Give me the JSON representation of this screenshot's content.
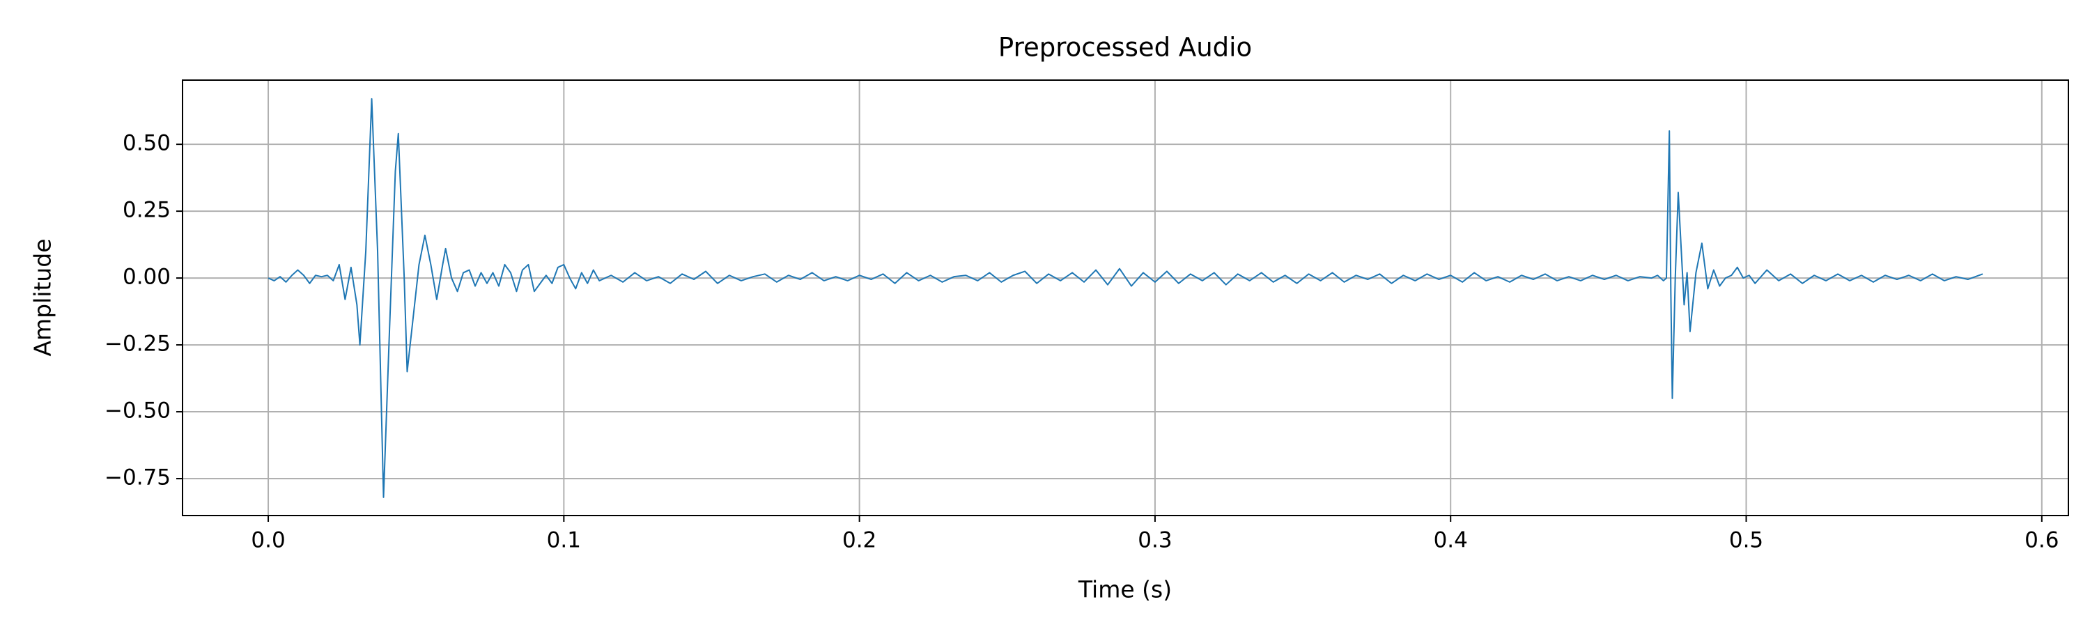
{
  "chart_data": {
    "type": "line",
    "title": "Preprocessed Audio",
    "x_label": "Time (s)",
    "y_label": "Amplitude",
    "xlim": [
      -0.029,
      0.609
    ],
    "ylim": [
      -0.888,
      0.74
    ],
    "xticks": [
      {
        "value": 0,
        "label": "0.0"
      },
      0.1,
      0.2,
      0.3,
      0.4,
      0.5,
      0.6
    ],
    "yticks": [
      {
        "value": -0.75,
        "label": "−0.75"
      },
      {
        "value": -0.5,
        "label": "−0.50"
      },
      {
        "value": -0.25,
        "label": "−0.25"
      },
      {
        "value": 0,
        "label": "0.00"
      },
      {
        "value": 0.25,
        "label": "0.25"
      },
      {
        "value": 0.5,
        "label": "0.50"
      }
    ],
    "grid": true,
    "x": [
      0,
      0.002,
      0.004,
      0.006,
      0.008,
      0.01,
      0.012,
      0.014,
      0.016,
      0.018,
      0.02,
      0.022,
      0.024,
      0.026,
      0.028,
      0.03,
      0.031,
      0.033,
      0.035,
      0.037,
      0.039,
      0.041,
      0.043,
      0.044,
      0.046,
      0.047,
      0.049,
      0.051,
      0.053,
      0.055,
      0.057,
      0.059,
      0.06,
      0.062,
      0.064,
      0.066,
      0.068,
      0.07,
      0.072,
      0.074,
      0.076,
      0.078,
      0.08,
      0.082,
      0.084,
      0.086,
      0.088,
      0.09,
      0.092,
      0.094,
      0.096,
      0.098,
      0.1,
      0.102,
      0.104,
      0.106,
      0.108,
      0.11,
      0.112,
      0.116,
      0.12,
      0.124,
      0.128,
      0.132,
      0.136,
      0.14,
      0.144,
      0.148,
      0.152,
      0.156,
      0.16,
      0.164,
      0.168,
      0.172,
      0.176,
      0.18,
      0.184,
      0.188,
      0.192,
      0.196,
      0.2,
      0.204,
      0.208,
      0.212,
      0.216,
      0.22,
      0.224,
      0.228,
      0.232,
      0.236,
      0.24,
      0.244,
      0.248,
      0.252,
      0.256,
      0.26,
      0.264,
      0.268,
      0.272,
      0.276,
      0.28,
      0.284,
      0.288,
      0.292,
      0.296,
      0.3,
      0.304,
      0.308,
      0.312,
      0.316,
      0.32,
      0.324,
      0.328,
      0.332,
      0.336,
      0.34,
      0.344,
      0.348,
      0.352,
      0.356,
      0.36,
      0.364,
      0.368,
      0.372,
      0.376,
      0.38,
      0.384,
      0.388,
      0.392,
      0.396,
      0.4,
      0.404,
      0.408,
      0.412,
      0.416,
      0.42,
      0.424,
      0.428,
      0.432,
      0.436,
      0.44,
      0.444,
      0.448,
      0.452,
      0.456,
      0.46,
      0.464,
      0.468,
      0.47,
      0.472,
      0.473,
      0.474,
      0.4745,
      0.475,
      0.476,
      0.477,
      0.479,
      0.48,
      0.481,
      0.483,
      0.485,
      0.487,
      0.489,
      0.491,
      0.493,
      0.495,
      0.497,
      0.499,
      0.501,
      0.503,
      0.507,
      0.511,
      0.515,
      0.519,
      0.523,
      0.527,
      0.531,
      0.535,
      0.539,
      0.543,
      0.547,
      0.551,
      0.555,
      0.559,
      0.563,
      0.567,
      0.571,
      0.575,
      0.58
    ],
    "series": [
      {
        "color": "#1f77b4",
        "values": [
          0,
          -0.01,
          0.005,
          -0.015,
          0.01,
          0.03,
          0.01,
          -0.02,
          0.01,
          0.005,
          0.01,
          -0.01,
          0.05,
          -0.08,
          0.04,
          -0.1,
          -0.25,
          0.1,
          0.67,
          0.1,
          -0.82,
          -0.2,
          0.4,
          0.54,
          0,
          -0.35,
          -0.15,
          0.05,
          0.16,
          0.05,
          -0.08,
          0.05,
          0.11,
          0,
          -0.05,
          0.02,
          0.03,
          -0.03,
          0.02,
          -0.02,
          0.02,
          -0.03,
          0.05,
          0.02,
          -0.05,
          0.03,
          0.05,
          -0.05,
          -0.02,
          0.01,
          -0.02,
          0.04,
          0.05,
          0,
          -0.04,
          0.02,
          -0.02,
          0.03,
          -0.01,
          0.01,
          -0.015,
          0.02,
          -0.01,
          0.005,
          -0.02,
          0.015,
          -0.005,
          0.025,
          -0.02,
          0.01,
          -0.01,
          0.005,
          0.015,
          -0.015,
          0.01,
          -0.005,
          0.02,
          -0.01,
          0.005,
          -0.01,
          0.01,
          -0.005,
          0.015,
          -0.02,
          0.02,
          -0.01,
          0.01,
          -0.015,
          0.005,
          0.01,
          -0.01,
          0.02,
          -0.015,
          0.01,
          0.025,
          -0.02,
          0.015,
          -0.01,
          0.02,
          -0.015,
          0.03,
          -0.025,
          0.035,
          -0.03,
          0.02,
          -0.015,
          0.025,
          -0.02,
          0.015,
          -0.01,
          0.02,
          -0.025,
          0.015,
          -0.01,
          0.02,
          -0.015,
          0.01,
          -0.02,
          0.015,
          -0.01,
          0.02,
          -0.015,
          0.01,
          -0.005,
          0.015,
          -0.02,
          0.01,
          -0.01,
          0.015,
          -0.005,
          0.01,
          -0.015,
          0.02,
          -0.01,
          0.005,
          -0.015,
          0.01,
          -0.005,
          0.015,
          -0.01,
          0.005,
          -0.01,
          0.01,
          -0.005,
          0.01,
          -0.01,
          0.005,
          0,
          0.01,
          -0.01,
          0,
          0.55,
          -0.05,
          -0.45,
          0,
          0.32,
          -0.1,
          0.02,
          -0.2,
          0.02,
          0.13,
          -0.04,
          0.03,
          -0.03,
          0,
          0.01,
          0.04,
          0,
          0.01,
          -0.02,
          0.03,
          -0.01,
          0.015,
          -0.02,
          0.01,
          -0.01,
          0.015,
          -0.01,
          0.01,
          -0.015,
          0.01,
          -0.005,
          0.01,
          -0.01,
          0.015,
          -0.01,
          0.005,
          -0.005,
          0.015
        ]
      }
    ]
  }
}
